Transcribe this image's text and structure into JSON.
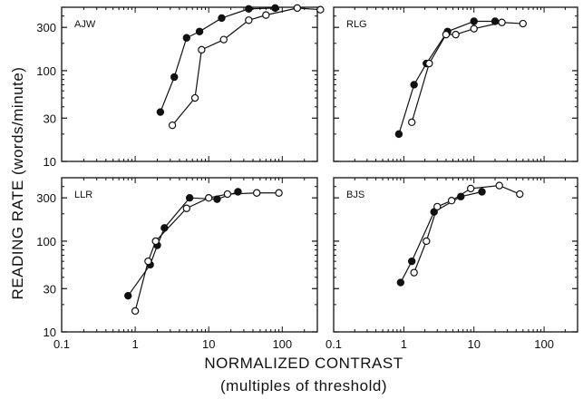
{
  "figure": {
    "ylabel": "READING RATE (words/minute)",
    "xlabel_line1": "NORMALIZED CONTRAST",
    "xlabel_line2": "(multiples of threshold)"
  },
  "chart_data": [
    {
      "type": "scatter",
      "panel": "AJW",
      "x_scale": "log",
      "y_scale": "log",
      "xlim": [
        0.1,
        300
      ],
      "ylim": [
        10,
        500
      ],
      "x_ticks": [
        "0.1",
        "1",
        "10",
        "100"
      ],
      "y_ticks": [
        "10",
        "30",
        "100",
        "300"
      ],
      "series": [
        {
          "marker": "filled-circle",
          "x": [
            2.2,
            3.4,
            5,
            7.5,
            15,
            35,
            80
          ],
          "y": [
            35,
            85,
            230,
            270,
            380,
            480,
            490
          ]
        },
        {
          "marker": "open-circle",
          "x": [
            3.2,
            6.5,
            8,
            16,
            35,
            60,
            160,
            330
          ],
          "y": [
            25,
            50,
            170,
            220,
            360,
            410,
            490,
            470
          ]
        }
      ]
    },
    {
      "type": "scatter",
      "panel": "RLG",
      "x_scale": "log",
      "y_scale": "log",
      "xlim": [
        0.1,
        300
      ],
      "ylim": [
        10,
        500
      ],
      "x_ticks": [
        "0.1",
        "1",
        "10",
        "100"
      ],
      "y_ticks": [
        "10",
        "30",
        "100",
        "300"
      ],
      "series": [
        {
          "marker": "filled-circle",
          "x": [
            0.85,
            1.4,
            2.1,
            4.2,
            10,
            20
          ],
          "y": [
            20,
            70,
            120,
            270,
            350,
            350
          ]
        },
        {
          "marker": "open-circle",
          "x": [
            1.3,
            2.3,
            4,
            5.5,
            10,
            25,
            50
          ],
          "y": [
            27,
            120,
            250,
            250,
            290,
            340,
            330
          ]
        }
      ]
    },
    {
      "type": "scatter",
      "panel": "LLR",
      "x_scale": "log",
      "y_scale": "log",
      "xlim": [
        0.1,
        300
      ],
      "ylim": [
        10,
        500
      ],
      "x_ticks": [
        "0.1",
        "1",
        "10",
        "100"
      ],
      "y_ticks": [
        "10",
        "30",
        "100",
        "300"
      ],
      "series": [
        {
          "marker": "filled-circle",
          "x": [
            0.8,
            1.6,
            2,
            2.5,
            5.5,
            13,
            25
          ],
          "y": [
            25,
            55,
            90,
            140,
            300,
            290,
            350
          ]
        },
        {
          "marker": "open-circle",
          "x": [
            1,
            1.5,
            1.9,
            5,
            10,
            18,
            45,
            90
          ],
          "y": [
            17,
            60,
            100,
            230,
            300,
            330,
            340,
            340
          ]
        }
      ]
    },
    {
      "type": "scatter",
      "panel": "BJS",
      "x_scale": "log",
      "y_scale": "log",
      "xlim": [
        0.1,
        300
      ],
      "ylim": [
        10,
        500
      ],
      "x_ticks": [
        "0.1",
        "1",
        "10",
        "100"
      ],
      "y_ticks": [
        "10",
        "30",
        "100",
        "300"
      ],
      "series": [
        {
          "marker": "filled-circle",
          "x": [
            0.9,
            1.3,
            2.7,
            6.5,
            13
          ],
          "y": [
            35,
            60,
            210,
            310,
            350
          ]
        },
        {
          "marker": "open-circle",
          "x": [
            1.4,
            2.1,
            3,
            4.8,
            9,
            23,
            45
          ],
          "y": [
            45,
            100,
            240,
            280,
            380,
            410,
            330
          ]
        }
      ]
    }
  ]
}
